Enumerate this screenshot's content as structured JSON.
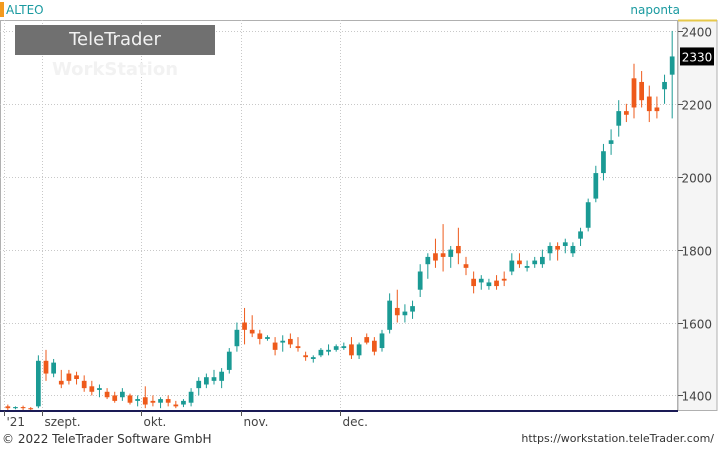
{
  "header": {
    "symbol": "ALTEO",
    "interval": "naponta",
    "watermark_brand": "TeleTrader",
    "watermark_product": "WorkStation"
  },
  "footer": {
    "copyright": "© 2022 TeleTrader Software GmbH",
    "url": "https://workstation.teleTrader.com/"
  },
  "colors": {
    "up": "#1a9a94",
    "down": "#ee5a1b",
    "grid": "#c8c8c8",
    "axis_bg": "#f5f5f5",
    "last_price_bg": "#000000"
  },
  "chart_data": {
    "type": "candlestick",
    "ylim": [
      1360,
      2430
    ],
    "y_ticks": [
      1400,
      1600,
      1800,
      2000,
      2200,
      2400
    ],
    "y_tick_labels": [
      "1400",
      "1600",
      "1800",
      "2000",
      "2200",
      "2400"
    ],
    "x_labels": [
      {
        "label": "'21",
        "index": 0
      },
      {
        "label": "szept.",
        "index": 5
      },
      {
        "label": "okt.",
        "index": 18
      },
      {
        "label": "nov.",
        "index": 31
      },
      {
        "label": "dec.",
        "index": 44
      }
    ],
    "last_price_label": "2330",
    "last_price": 2330,
    "candles": [
      [
        1370,
        1375,
        1360,
        1365
      ],
      [
        1365,
        1370,
        1362,
        1368
      ],
      [
        1368,
        1372,
        1360,
        1365
      ],
      [
        1365,
        1368,
        1360,
        1362
      ],
      [
        1370,
        1510,
        1365,
        1495
      ],
      [
        1495,
        1525,
        1440,
        1460
      ],
      [
        1460,
        1500,
        1450,
        1490
      ],
      [
        1440,
        1470,
        1420,
        1430
      ],
      [
        1460,
        1470,
        1430,
        1440
      ],
      [
        1455,
        1465,
        1430,
        1445
      ],
      [
        1440,
        1455,
        1410,
        1420
      ],
      [
        1425,
        1440,
        1400,
        1410
      ],
      [
        1415,
        1430,
        1395,
        1420
      ],
      [
        1410,
        1420,
        1390,
        1395
      ],
      [
        1400,
        1410,
        1380,
        1385
      ],
      [
        1395,
        1420,
        1385,
        1410
      ],
      [
        1400,
        1405,
        1375,
        1380
      ],
      [
        1385,
        1400,
        1370,
        1390
      ],
      [
        1395,
        1425,
        1365,
        1375
      ],
      [
        1385,
        1400,
        1370,
        1380
      ],
      [
        1380,
        1395,
        1365,
        1390
      ],
      [
        1390,
        1400,
        1370,
        1380
      ],
      [
        1375,
        1385,
        1365,
        1370
      ],
      [
        1375,
        1390,
        1368,
        1385
      ],
      [
        1380,
        1420,
        1370,
        1410
      ],
      [
        1420,
        1450,
        1400,
        1440
      ],
      [
        1430,
        1460,
        1420,
        1450
      ],
      [
        1440,
        1470,
        1430,
        1450
      ],
      [
        1440,
        1475,
        1420,
        1465
      ],
      [
        1470,
        1530,
        1460,
        1520
      ],
      [
        1535,
        1600,
        1520,
        1580
      ],
      [
        1600,
        1640,
        1540,
        1580
      ],
      [
        1580,
        1620,
        1560,
        1570
      ],
      [
        1570,
        1580,
        1540,
        1555
      ],
      [
        1555,
        1565,
        1550,
        1560
      ],
      [
        1545,
        1560,
        1510,
        1525
      ],
      [
        1545,
        1565,
        1520,
        1550
      ],
      [
        1555,
        1570,
        1530,
        1540
      ],
      [
        1535,
        1560,
        1520,
        1530
      ],
      [
        1510,
        1520,
        1495,
        1505
      ],
      [
        1500,
        1510,
        1490,
        1505
      ],
      [
        1510,
        1530,
        1505,
        1525
      ],
      [
        1520,
        1540,
        1510,
        1525
      ],
      [
        1525,
        1540,
        1520,
        1535
      ],
      [
        1530,
        1545,
        1525,
        1535
      ],
      [
        1540,
        1560,
        1500,
        1510
      ],
      [
        1510,
        1545,
        1500,
        1540
      ],
      [
        1560,
        1570,
        1540,
        1545
      ],
      [
        1550,
        1560,
        1510,
        1520
      ],
      [
        1530,
        1580,
        1520,
        1570
      ],
      [
        1580,
        1680,
        1570,
        1660
      ],
      [
        1640,
        1690,
        1600,
        1620
      ],
      [
        1620,
        1650,
        1600,
        1630
      ],
      [
        1630,
        1660,
        1610,
        1645
      ],
      [
        1690,
        1760,
        1670,
        1740
      ],
      [
        1760,
        1790,
        1720,
        1780
      ],
      [
        1790,
        1830,
        1750,
        1770
      ],
      [
        1790,
        1870,
        1740,
        1780
      ],
      [
        1780,
        1810,
        1750,
        1800
      ],
      [
        1810,
        1860,
        1760,
        1790
      ],
      [
        1760,
        1780,
        1730,
        1750
      ],
      [
        1720,
        1740,
        1680,
        1700
      ],
      [
        1710,
        1730,
        1690,
        1720
      ],
      [
        1700,
        1720,
        1690,
        1710
      ],
      [
        1715,
        1730,
        1690,
        1700
      ],
      [
        1720,
        1740,
        1700,
        1715
      ],
      [
        1740,
        1790,
        1730,
        1770
      ],
      [
        1770,
        1790,
        1750,
        1760
      ],
      [
        1750,
        1770,
        1740,
        1755
      ],
      [
        1760,
        1780,
        1750,
        1770
      ],
      [
        1760,
        1800,
        1750,
        1780
      ],
      [
        1790,
        1820,
        1770,
        1810
      ],
      [
        1810,
        1820,
        1770,
        1800
      ],
      [
        1810,
        1830,
        1790,
        1820
      ],
      [
        1790,
        1820,
        1780,
        1810
      ],
      [
        1830,
        1860,
        1810,
        1850
      ],
      [
        1860,
        1940,
        1850,
        1930
      ],
      [
        1940,
        2030,
        1930,
        2010
      ],
      [
        2010,
        2090,
        1990,
        2070
      ],
      [
        2090,
        2130,
        2060,
        2100
      ],
      [
        2140,
        2210,
        2110,
        2180
      ],
      [
        2180,
        2200,
        2150,
        2170
      ],
      [
        2270,
        2310,
        2160,
        2190
      ],
      [
        2260,
        2290,
        2190,
        2210
      ],
      [
        2220,
        2250,
        2150,
        2180
      ],
      [
        2190,
        2220,
        2160,
        2180
      ],
      [
        2240,
        2280,
        2200,
        2260
      ],
      [
        2280,
        2400,
        2160,
        2330
      ]
    ]
  }
}
